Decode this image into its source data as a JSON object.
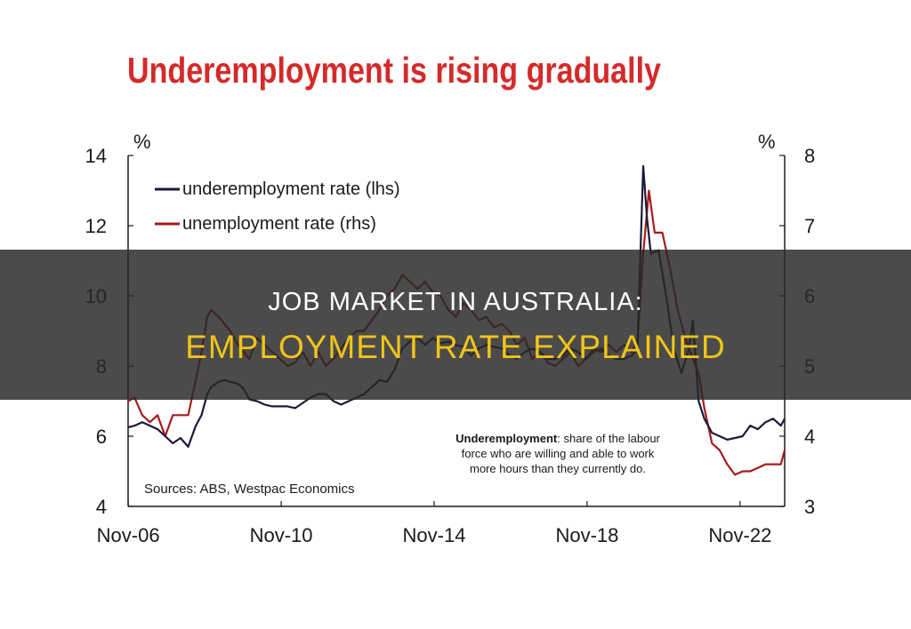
{
  "chart_data": {
    "type": "line",
    "title": "Underemployment is rising gradually",
    "ylabel_left": "%",
    "ylabel_right": "%",
    "ylim_left": [
      4,
      14
    ],
    "ylim_right": [
      3,
      8
    ],
    "yticks_left": [
      "14",
      "12",
      "10",
      "8",
      "6",
      "4"
    ],
    "yticks_right": [
      "8",
      "7",
      "6",
      "5",
      "4",
      "3"
    ],
    "x_ticks": [
      "Nov-06",
      "Nov-10",
      "Nov-14",
      "Nov-18",
      "Nov-22"
    ],
    "x_range": [
      2006.83,
      2024.0
    ],
    "grid": false,
    "legend": "top-left",
    "series": [
      {
        "name": "underemployment rate (lhs)",
        "axis": "left",
        "color": "#1a1a3c",
        "x": [
          2006.83,
          2007.0,
          2007.2,
          2007.4,
          2007.6,
          2007.8,
          2008.0,
          2008.2,
          2008.4,
          2008.6,
          2008.75,
          2008.9,
          2009.0,
          2009.2,
          2009.35,
          2009.5,
          2009.7,
          2009.85,
          2010.0,
          2010.2,
          2010.4,
          2010.6,
          2010.8,
          2011.0,
          2011.2,
          2011.4,
          2011.6,
          2011.8,
          2012.0,
          2012.2,
          2012.4,
          2012.6,
          2012.8,
          2013.0,
          2013.2,
          2013.4,
          2013.6,
          2013.8,
          2014.0,
          2014.2,
          2014.4,
          2014.6,
          2014.8,
          2015.0,
          2015.2,
          2015.4,
          2015.6,
          2015.8,
          2016.0,
          2016.2,
          2016.4,
          2016.6,
          2016.8,
          2017.0,
          2017.2,
          2017.4,
          2017.6,
          2017.8,
          2018.0,
          2018.2,
          2018.4,
          2018.6,
          2018.8,
          2019.0,
          2019.2,
          2019.4,
          2019.6,
          2019.8,
          2020.0,
          2020.15,
          2020.3,
          2020.4,
          2020.5,
          2020.7,
          2020.9,
          2021.1,
          2021.3,
          2021.5,
          2021.6,
          2021.75,
          2021.9,
          2022.1,
          2022.3,
          2022.5,
          2022.7,
          2022.9,
          2023.1,
          2023.3,
          2023.5,
          2023.7,
          2023.9,
          2024.0
        ],
        "y": [
          6.25,
          6.3,
          6.4,
          6.3,
          6.2,
          6.0,
          5.8,
          5.95,
          5.7,
          6.3,
          6.6,
          7.2,
          7.4,
          7.55,
          7.6,
          7.55,
          7.5,
          7.35,
          7.05,
          7.0,
          6.9,
          6.85,
          6.85,
          6.85,
          6.8,
          6.95,
          7.1,
          7.2,
          7.2,
          7.0,
          6.9,
          7.0,
          7.1,
          7.2,
          7.4,
          7.6,
          7.55,
          7.9,
          8.5,
          8.7,
          8.8,
          8.6,
          8.8,
          8.65,
          8.7,
          8.6,
          8.55,
          8.3,
          8.5,
          8.6,
          8.55,
          8.5,
          8.3,
          8.2,
          8.4,
          8.5,
          8.4,
          8.2,
          8.2,
          8.3,
          8.5,
          8.4,
          8.2,
          8.4,
          8.5,
          8.3,
          8.2,
          8.2,
          8.3,
          8.5,
          13.7,
          12.2,
          11.2,
          11.3,
          10.0,
          8.5,
          7.8,
          8.5,
          9.3,
          7.0,
          6.5,
          6.1,
          6.0,
          5.9,
          5.95,
          6.0,
          6.3,
          6.2,
          6.4,
          6.5,
          6.3,
          6.5
        ]
      },
      {
        "name": "unemployment rate (rhs)",
        "axis": "right",
        "color": "#a61b1b",
        "x": [
          2006.83,
          2007.0,
          2007.2,
          2007.4,
          2007.6,
          2007.8,
          2008.0,
          2008.2,
          2008.4,
          2008.6,
          2008.75,
          2008.9,
          2009.0,
          2009.2,
          2009.35,
          2009.5,
          2009.7,
          2009.85,
          2010.0,
          2010.2,
          2010.4,
          2010.6,
          2010.8,
          2011.0,
          2011.2,
          2011.4,
          2011.6,
          2011.8,
          2012.0,
          2012.2,
          2012.4,
          2012.6,
          2012.8,
          2013.0,
          2013.2,
          2013.4,
          2013.6,
          2013.8,
          2014.0,
          2014.2,
          2014.4,
          2014.6,
          2014.8,
          2015.0,
          2015.2,
          2015.4,
          2015.6,
          2015.8,
          2016.0,
          2016.2,
          2016.4,
          2016.6,
          2016.8,
          2017.0,
          2017.2,
          2017.4,
          2017.6,
          2017.8,
          2018.0,
          2018.2,
          2018.4,
          2018.6,
          2018.8,
          2019.0,
          2019.2,
          2019.4,
          2019.6,
          2019.8,
          2020.0,
          2020.15,
          2020.3,
          2020.45,
          2020.6,
          2020.8,
          2021.0,
          2021.2,
          2021.4,
          2021.6,
          2021.75,
          2021.9,
          2022.1,
          2022.3,
          2022.5,
          2022.7,
          2022.9,
          2023.1,
          2023.3,
          2023.5,
          2023.7,
          2023.9,
          2024.0
        ],
        "y": [
          4.5,
          4.55,
          4.3,
          4.2,
          4.3,
          4.0,
          4.3,
          4.3,
          4.3,
          4.8,
          5.2,
          5.7,
          5.8,
          5.7,
          5.6,
          5.5,
          5.3,
          5.2,
          5.1,
          5.4,
          5.3,
          5.2,
          5.1,
          5.0,
          5.05,
          5.2,
          5.0,
          5.2,
          5.0,
          5.1,
          5.25,
          5.4,
          5.5,
          5.5,
          5.65,
          5.8,
          6.0,
          6.1,
          6.3,
          6.2,
          6.1,
          6.2,
          6.05,
          6.0,
          5.8,
          5.7,
          5.9,
          5.8,
          5.65,
          5.7,
          5.55,
          5.6,
          5.5,
          5.3,
          5.4,
          5.1,
          5.2,
          5.05,
          5.0,
          5.1,
          5.2,
          5.0,
          5.1,
          5.25,
          5.2,
          5.3,
          5.2,
          5.3,
          5.2,
          5.35,
          6.6,
          7.5,
          6.9,
          6.9,
          6.4,
          5.8,
          5.4,
          5.1,
          4.9,
          4.4,
          3.9,
          3.8,
          3.6,
          3.45,
          3.5,
          3.5,
          3.55,
          3.6,
          3.6,
          3.6,
          3.8
        ]
      }
    ],
    "annotation": {
      "bold": "Underemployment",
      "rest_line1": ": share of the labour",
      "line2": "force who are willing and able to work",
      "line3": "more hours than they currently do."
    },
    "source": "Sources: ABS, Westpac Economics",
    "colors": {
      "title": "#d42a2a",
      "axis": "#1a1a1a"
    }
  },
  "overlay": {
    "line1": "JOB MARKET IN AUSTRALIA:",
    "line2": "EMPLOYMENT RATE EXPLAINED",
    "band_color": "#2b2b2b",
    "line2_color": "#f0c419"
  }
}
